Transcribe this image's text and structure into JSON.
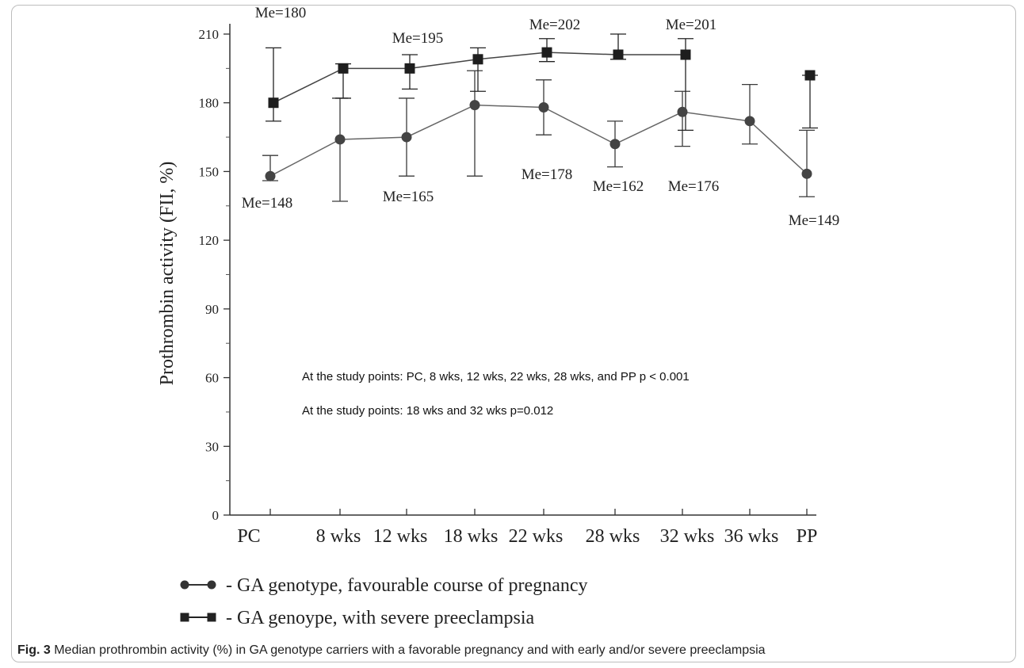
{
  "chart_data": {
    "type": "line",
    "ylabel": "Prothrombin activity   (FII, %)",
    "ylim": [
      0,
      215
    ],
    "yticks": [
      0,
      30,
      60,
      90,
      120,
      150,
      180,
      210
    ],
    "categories": [
      "PC",
      "8  wks",
      "12  wks",
      "18  wks",
      "22  wks",
      "28  wks",
      "32  wks",
      "36  wks",
      "PP"
    ],
    "series": [
      {
        "name": "GA genotype, favourable course of pregnancy",
        "marker": "circle",
        "color": "#3a3a3a",
        "values": [
          148,
          164,
          165,
          179,
          178,
          162,
          176,
          172,
          149
        ],
        "err_low": [
          146,
          137,
          148,
          148,
          166,
          152,
          161,
          162,
          139
        ],
        "err_high": [
          157,
          182,
          182,
          194,
          190,
          172,
          185,
          188,
          168
        ]
      },
      {
        "name": "GA genoype, with severe preeclampsia",
        "marker": "square",
        "color": "#222222",
        "values": [
          180,
          195,
          195,
          199,
          202,
          201,
          201,
          null,
          192
        ],
        "err_low": [
          172,
          182,
          186,
          185,
          198,
          199,
          168,
          null,
          169
        ],
        "err_high": [
          204,
          197,
          201,
          204,
          208,
          210,
          208,
          null,
          192
        ]
      }
    ],
    "annotations": [
      {
        "text": "Me=180",
        "series": 1,
        "index": 0,
        "pos": "above"
      },
      {
        "text": "Me=195",
        "series": 1,
        "index": 2,
        "pos": "above"
      },
      {
        "text": "Me=202",
        "series": 1,
        "index": 4,
        "pos": "above"
      },
      {
        "text": "Me=201",
        "series": 1,
        "index": 6,
        "pos": "above"
      },
      {
        "text": "Me=148",
        "series": 0,
        "index": 0,
        "pos": "below"
      },
      {
        "text": "Me=165",
        "series": 0,
        "index": 2,
        "pos": "below"
      },
      {
        "text": "Me=178",
        "series": 0,
        "index": 4,
        "pos": "below"
      },
      {
        "text": "Me=162",
        "series": 0,
        "index": 5,
        "pos": "below"
      },
      {
        "text": "Me=176",
        "series": 0,
        "index": 6,
        "pos": "below"
      },
      {
        "text": "Me=149",
        "series": 0,
        "index": 8,
        "pos": "below"
      }
    ],
    "notes": [
      "At the study points: PC, 8 wks, 12 wks, 22 wks, 28 wks, and PP p < 0.001",
      "At the study points: 18 wks and 32 wks p=0.012"
    ],
    "legend": [
      {
        "label": "-  GA genotype, favourable course of pregnancy",
        "marker": "circle"
      },
      {
        "label": "-  GA genoype, with severe preeclampsia",
        "marker": "square"
      }
    ],
    "grid": false
  },
  "caption": {
    "label": "Fig. 3",
    "text": " Median prothrombin activity (%) in GA genotype carriers with a favorable pregnancy and with early and/or severe preeclampsia"
  }
}
